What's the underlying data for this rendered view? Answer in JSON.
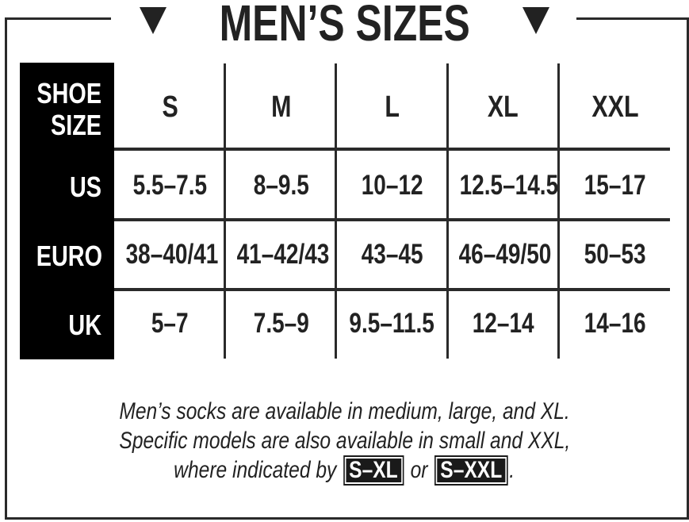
{
  "title": "MEN’S SIZES",
  "icons": {
    "left": "triangle-down-icon",
    "right": "triangle-down-icon"
  },
  "table": {
    "corner_label": [
      "SHOE",
      "SIZE"
    ],
    "columns": [
      "S",
      "M",
      "L",
      "XL",
      "XXL"
    ],
    "rows": [
      {
        "label": "US",
        "values": [
          "5.5–7.5",
          "8–9.5",
          "10–12",
          "12.5–14.5",
          "15–17"
        ]
      },
      {
        "label": "EURO",
        "values": [
          "38–40/41",
          "41–42/43",
          "43–45",
          "46–49/50",
          "50–53"
        ]
      },
      {
        "label": "UK",
        "values": [
          "5–7",
          "7.5–9",
          "9.5–11.5",
          "12–14",
          "14–16"
        ]
      }
    ]
  },
  "note": {
    "line1": "Men’s socks are available in medium, large, and XL.",
    "line2": "Specific models are also available in small and XXL,",
    "line3_prefix": "where indicated by",
    "badge1": "S–XL",
    "connector": "or",
    "badge2": "S–XXL",
    "suffix": "."
  }
}
